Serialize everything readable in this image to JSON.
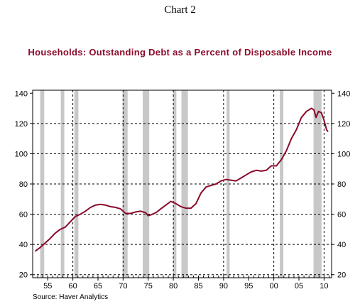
{
  "chart_label": "Chart 2",
  "source": "Source: Haver Analytics",
  "colors": {
    "line": "#8b0a2a",
    "recession": "#c8c8c8",
    "title": "#8b0a2a"
  },
  "chart_data": {
    "type": "line",
    "title": "Households: Outstanding Debt as a Percent of Disposable Income",
    "xlabel": "",
    "ylabel": "",
    "xlim": [
      1952,
      2011.5
    ],
    "ylim": [
      18,
      142
    ],
    "y_ticks": [
      20,
      40,
      60,
      80,
      100,
      120,
      140
    ],
    "x_ticks": [
      {
        "year": 1955,
        "label": "55"
      },
      {
        "year": 1960,
        "label": "60"
      },
      {
        "year": 1965,
        "label": "65"
      },
      {
        "year": 1970,
        "label": "70"
      },
      {
        "year": 1975,
        "label": "75"
      },
      {
        "year": 1980,
        "label": "80"
      },
      {
        "year": 1985,
        "label": "85"
      },
      {
        "year": 1990,
        "label": "90"
      },
      {
        "year": 1995,
        "label": "95"
      },
      {
        "year": 2000,
        "label": "00"
      },
      {
        "year": 2005,
        "label": "05"
      },
      {
        "year": 2010,
        "label": "10"
      }
    ],
    "grid": "horizontal dashed at y ticks, vertical dashed at decades",
    "vertical_grid_years": [
      1960,
      1970,
      1980,
      1990,
      2000,
      2010
    ],
    "recessions": [
      [
        1953.5,
        1954.3
      ],
      [
        1957.6,
        1958.3
      ],
      [
        1960.3,
        1961.1
      ],
      [
        1969.9,
        1970.9
      ],
      [
        1973.9,
        1975.2
      ],
      [
        1980.0,
        1980.6
      ],
      [
        1981.6,
        1982.9
      ],
      [
        1990.6,
        1991.2
      ],
      [
        2001.2,
        2001.9
      ],
      [
        2007.9,
        2009.5
      ]
    ],
    "series": [
      {
        "values": [
          [
            1952.5,
            35.5
          ],
          [
            1953.5,
            38
          ],
          [
            1954.5,
            41
          ],
          [
            1955.5,
            44
          ],
          [
            1956.5,
            47.5
          ],
          [
            1957.5,
            50
          ],
          [
            1958.5,
            51.5
          ],
          [
            1959.5,
            55
          ],
          [
            1960.5,
            58.5
          ],
          [
            1961.5,
            60
          ],
          [
            1962.5,
            62
          ],
          [
            1963.5,
            64.5
          ],
          [
            1964.5,
            66
          ],
          [
            1965.5,
            66.5
          ],
          [
            1966.5,
            66
          ],
          [
            1967.5,
            65
          ],
          [
            1968.5,
            64.5
          ],
          [
            1969.5,
            63.5
          ],
          [
            1970.5,
            60.5
          ],
          [
            1971.5,
            60.5
          ],
          [
            1972.5,
            61.5
          ],
          [
            1973.5,
            62
          ],
          [
            1974.5,
            61
          ],
          [
            1975.0,
            59
          ],
          [
            1975.5,
            59.5
          ],
          [
            1976.5,
            61
          ],
          [
            1977.5,
            63.5
          ],
          [
            1978.5,
            66
          ],
          [
            1979.5,
            68.5
          ],
          [
            1980.5,
            67
          ],
          [
            1981.5,
            65
          ],
          [
            1982.5,
            64
          ],
          [
            1983.5,
            64
          ],
          [
            1984.5,
            67
          ],
          [
            1985.5,
            74
          ],
          [
            1986.5,
            78
          ],
          [
            1987.5,
            79
          ],
          [
            1988.5,
            80
          ],
          [
            1989.5,
            82
          ],
          [
            1990.5,
            83
          ],
          [
            1991.5,
            82.5
          ],
          [
            1992.5,
            82
          ],
          [
            1993.5,
            84
          ],
          [
            1994.5,
            86
          ],
          [
            1995.5,
            88
          ],
          [
            1996.5,
            89
          ],
          [
            1997.5,
            88.5
          ],
          [
            1998.5,
            89
          ],
          [
            1999.5,
            92
          ],
          [
            2000.5,
            92
          ],
          [
            2001.5,
            96
          ],
          [
            2002.5,
            102
          ],
          [
            2003.5,
            110
          ],
          [
            2004.5,
            116
          ],
          [
            2005.5,
            124
          ],
          [
            2006.5,
            128
          ],
          [
            2007.5,
            130
          ],
          [
            2008.0,
            129
          ],
          [
            2008.4,
            124
          ],
          [
            2008.9,
            128
          ],
          [
            2009.5,
            127
          ],
          [
            2010.0,
            122
          ],
          [
            2010.5,
            116
          ],
          [
            2010.8,
            114.5
          ]
        ]
      }
    ]
  }
}
